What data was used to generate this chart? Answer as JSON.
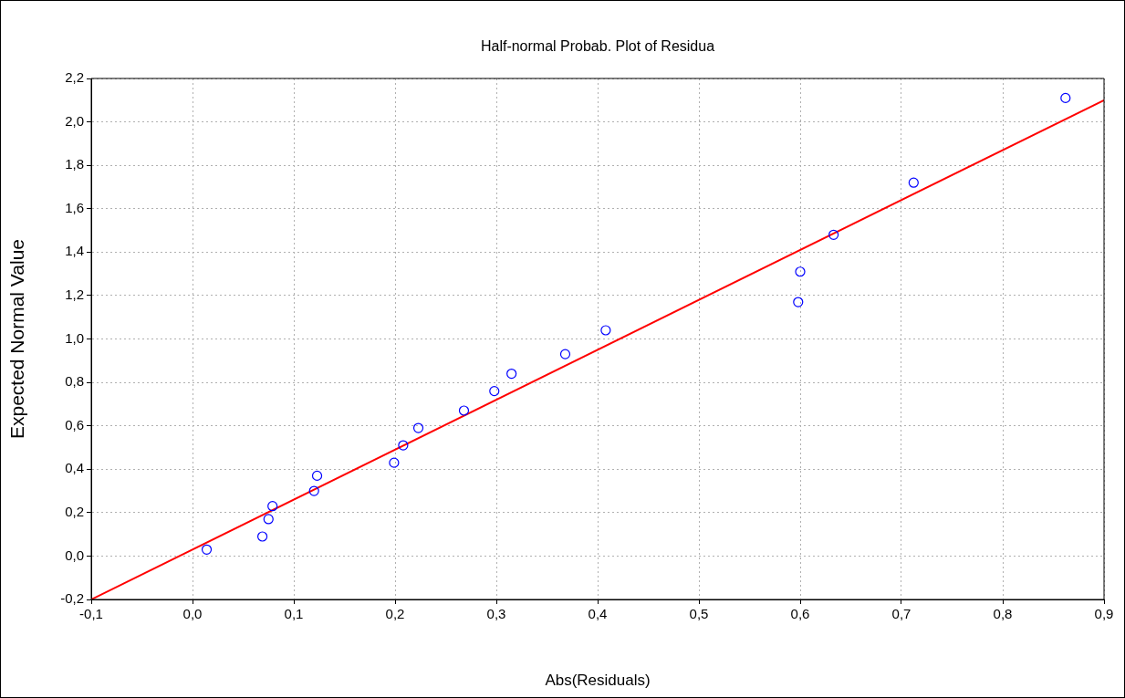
{
  "chart_data": {
    "type": "scatter",
    "title": "Half-normal Probab. Plot of Residua",
    "xlabel": "Abs(Residuals)",
    "ylabel": "Expected Normal Value",
    "xlim": [
      -0.1,
      0.9
    ],
    "ylim": [
      -0.2,
      2.2
    ],
    "xticks": [
      {
        "value": -0.1,
        "label": "-0,1"
      },
      {
        "value": 0,
        "label": "0,0"
      },
      {
        "value": 0.1,
        "label": "0,1"
      },
      {
        "value": 0.2,
        "label": "0,2"
      },
      {
        "value": 0.3,
        "label": "0,3"
      },
      {
        "value": 0.4,
        "label": "0,4"
      },
      {
        "value": 0.5,
        "label": "0,5"
      },
      {
        "value": 0.6,
        "label": "0,6"
      },
      {
        "value": 0.7,
        "label": "0,7"
      },
      {
        "value": 0.8,
        "label": "0,8"
      },
      {
        "value": 0.9,
        "label": "0,9"
      }
    ],
    "yticks": [
      {
        "value": -0.2,
        "label": "-0,2"
      },
      {
        "value": 0,
        "label": "0,0"
      },
      {
        "value": 0.2,
        "label": "0,2"
      },
      {
        "value": 0.4,
        "label": "0,4"
      },
      {
        "value": 0.6,
        "label": "0,6"
      },
      {
        "value": 0.8,
        "label": "0,8"
      },
      {
        "value": 1.0,
        "label": "1,0"
      },
      {
        "value": 1.2,
        "label": "1,2"
      },
      {
        "value": 1.4,
        "label": "1,4"
      },
      {
        "value": 1.6,
        "label": "1,6"
      },
      {
        "value": 1.8,
        "label": "1,8"
      },
      {
        "value": 2.0,
        "label": "2,0"
      },
      {
        "value": 2.2,
        "label": "2,2"
      }
    ],
    "grid": true,
    "marker": "circle",
    "series": [
      {
        "type": "scatter",
        "color": "#0000ff",
        "x": [
          0.014,
          0.069,
          0.075,
          0.079,
          0.12,
          0.123,
          0.199,
          0.208,
          0.223,
          0.268,
          0.298,
          0.315,
          0.368,
          0.408,
          0.598,
          0.6,
          0.633,
          0.712,
          0.862
        ],
        "values": [
          0.03,
          0.09,
          0.17,
          0.23,
          0.3,
          0.37,
          0.43,
          0.51,
          0.59,
          0.67,
          0.76,
          0.84,
          0.93,
          1.04,
          1.17,
          1.31,
          1.48,
          1.72,
          2.11
        ]
      },
      {
        "type": "line",
        "color": "#ff0000",
        "x": [
          -0.1,
          0.9
        ],
        "values": [
          -0.2,
          2.1
        ],
        "line_style": "solid",
        "marker": "none"
      }
    ]
  }
}
